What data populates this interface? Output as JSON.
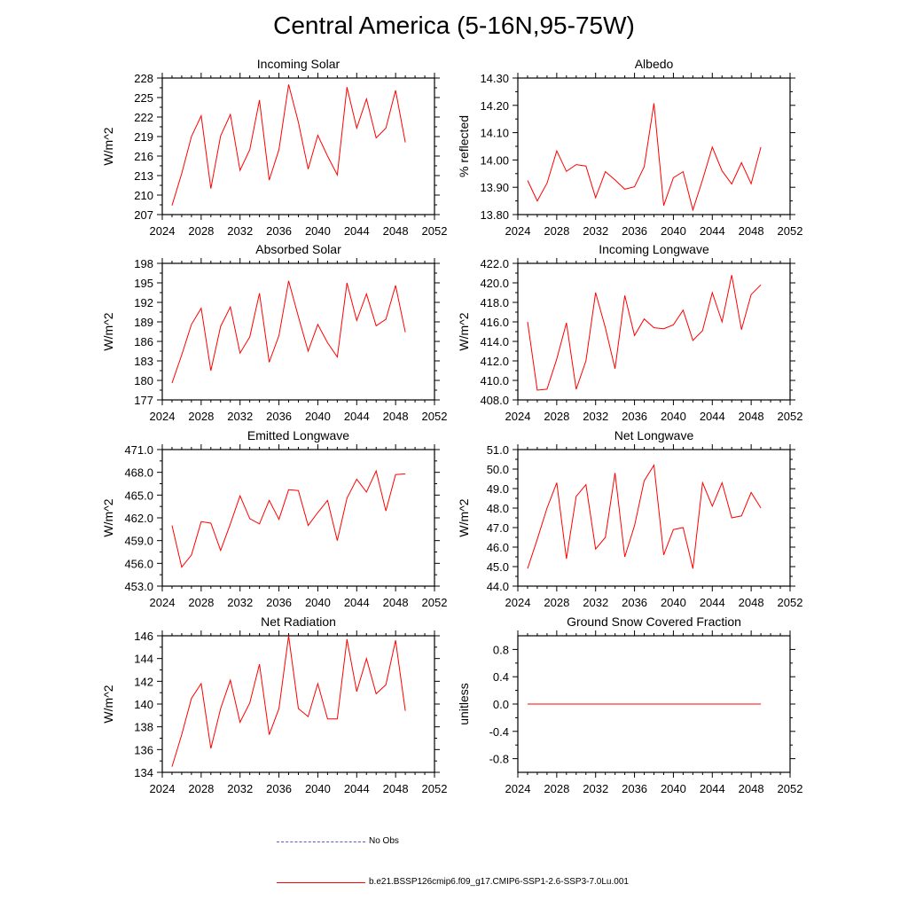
{
  "title": "Central America (5-16N,95-75W)",
  "legend": {
    "obs_label": "No Obs",
    "model_label": "b.e21.BSSP126cmip6.f09_g17.CMIP6-SSP1-2.6-SSP3-7.0Lu.001",
    "obs_color": "#5a5acf",
    "model_color": "#ff0000"
  },
  "chart_data": [
    {
      "type": "line",
      "title": "Incoming Solar",
      "ylabel": "W/m^2",
      "xlim": [
        2024,
        2052
      ],
      "xticks": [
        2024,
        2028,
        2032,
        2036,
        2040,
        2044,
        2048,
        2052
      ],
      "ylim": [
        207,
        228
      ],
      "yticks": [
        207,
        210,
        213,
        216,
        219,
        222,
        225,
        228
      ],
      "ytick_labels": [
        "207",
        "210",
        "213",
        "216",
        "219",
        "222",
        "225",
        "228"
      ],
      "x": [
        2025,
        2026,
        2027,
        2028,
        2029,
        2030,
        2031,
        2032,
        2033,
        2034,
        2035,
        2036,
        2037,
        2038,
        2039,
        2040,
        2041,
        2042,
        2043,
        2044,
        2045,
        2046,
        2047,
        2048,
        2049
      ],
      "series": [
        {
          "values": [
            208.4,
            213.3,
            219.0,
            222.2,
            211.0,
            219.1,
            222.4,
            213.8,
            217.0,
            224.6,
            212.3,
            217.0,
            227.0,
            221.2,
            214.0,
            219.2,
            216.0,
            213.1,
            226.6,
            220.3,
            224.8,
            218.8,
            220.3,
            226.1,
            218.1
          ]
        }
      ]
    },
    {
      "type": "line",
      "title": "Albedo",
      "ylabel": "% reflected",
      "xlim": [
        2024,
        2052
      ],
      "xticks": [
        2024,
        2028,
        2032,
        2036,
        2040,
        2044,
        2048,
        2052
      ],
      "ylim": [
        13.8,
        14.3
      ],
      "yticks": [
        13.8,
        13.9,
        14.0,
        14.1,
        14.2,
        14.3
      ],
      "ytick_labels": [
        "13.80",
        "13.90",
        "14.00",
        "14.10",
        "14.20",
        "14.30"
      ],
      "x": [
        2025,
        2026,
        2027,
        2028,
        2029,
        2030,
        2031,
        2032,
        2033,
        2034,
        2035,
        2036,
        2037,
        2038,
        2039,
        2040,
        2041,
        2042,
        2043,
        2044,
        2045,
        2046,
        2047,
        2048,
        2049
      ],
      "series": [
        {
          "values": [
            13.925,
            13.85,
            13.915,
            14.033,
            13.958,
            13.983,
            13.978,
            13.862,
            13.957,
            13.927,
            13.893,
            13.902,
            13.975,
            14.207,
            13.833,
            13.935,
            13.957,
            13.817,
            13.927,
            14.047,
            13.96,
            13.912,
            13.99,
            13.913,
            14.047
          ]
        }
      ]
    },
    {
      "type": "line",
      "title": "Absorbed Solar",
      "ylabel": "W/m^2",
      "xlim": [
        2024,
        2052
      ],
      "xticks": [
        2024,
        2028,
        2032,
        2036,
        2040,
        2044,
        2048,
        2052
      ],
      "ylim": [
        177,
        198
      ],
      "yticks": [
        177,
        180,
        183,
        186,
        189,
        192,
        195,
        198
      ],
      "ytick_labels": [
        "177",
        "180",
        "183",
        "186",
        "189",
        "192",
        "195",
        "198"
      ],
      "x": [
        2025,
        2026,
        2027,
        2028,
        2029,
        2030,
        2031,
        2032,
        2033,
        2034,
        2035,
        2036,
        2037,
        2038,
        2039,
        2040,
        2041,
        2042,
        2043,
        2044,
        2045,
        2046,
        2047,
        2048,
        2049
      ],
      "series": [
        {
          "values": [
            179.6,
            183.9,
            188.6,
            191.1,
            181.5,
            188.3,
            191.3,
            184.2,
            186.7,
            193.4,
            182.8,
            186.9,
            195.3,
            189.8,
            184.5,
            188.6,
            185.8,
            183.6,
            195.0,
            189.2,
            193.3,
            188.4,
            189.4,
            194.6,
            187.4
          ]
        }
      ]
    },
    {
      "type": "line",
      "title": "Incoming Longwave",
      "ylabel": "W/m^2",
      "xlim": [
        2024,
        2052
      ],
      "xticks": [
        2024,
        2028,
        2032,
        2036,
        2040,
        2044,
        2048,
        2052
      ],
      "ylim": [
        408,
        422
      ],
      "yticks": [
        408,
        410,
        412,
        414,
        416,
        418,
        420,
        422
      ],
      "ytick_labels": [
        "408.0",
        "410.0",
        "412.0",
        "414.0",
        "416.0",
        "418.0",
        "420.0",
        "422.0"
      ],
      "x": [
        2025,
        2026,
        2027,
        2028,
        2029,
        2030,
        2031,
        2032,
        2033,
        2034,
        2035,
        2036,
        2037,
        2038,
        2039,
        2040,
        2041,
        2042,
        2043,
        2044,
        2045,
        2046,
        2047,
        2048,
        2049
      ],
      "series": [
        {
          "values": [
            416.0,
            409.0,
            409.1,
            412.2,
            415.9,
            409.1,
            412.0,
            419.0,
            415.4,
            411.2,
            418.7,
            414.6,
            416.3,
            415.4,
            415.3,
            415.7,
            417.2,
            414.1,
            415.1,
            419.0,
            416.0,
            420.8,
            415.2,
            418.8,
            419.8
          ]
        }
      ]
    },
    {
      "type": "line",
      "title": "Emitted Longwave",
      "ylabel": "W/m^2",
      "xlim": [
        2024,
        2052
      ],
      "xticks": [
        2024,
        2028,
        2032,
        2036,
        2040,
        2044,
        2048,
        2052
      ],
      "ylim": [
        453,
        471
      ],
      "yticks": [
        453,
        456,
        459,
        462,
        465,
        468,
        471
      ],
      "ytick_labels": [
        "453.0",
        "456.0",
        "459.0",
        "462.0",
        "465.0",
        "468.0",
        "471.0"
      ],
      "x": [
        2025,
        2026,
        2027,
        2028,
        2029,
        2030,
        2031,
        2032,
        2033,
        2034,
        2035,
        2036,
        2037,
        2038,
        2039,
        2040,
        2041,
        2042,
        2043,
        2044,
        2045,
        2046,
        2047,
        2048,
        2049
      ],
      "series": [
        {
          "values": [
            461.0,
            455.5,
            457.1,
            461.5,
            461.3,
            457.7,
            461.2,
            464.9,
            461.9,
            461.2,
            464.3,
            461.8,
            465.7,
            465.6,
            461.0,
            462.7,
            464.3,
            459.0,
            464.6,
            467.1,
            465.4,
            468.2,
            462.9,
            467.7,
            467.8
          ]
        }
      ]
    },
    {
      "type": "line",
      "title": "Net Longwave",
      "ylabel": "W/m^2",
      "xlim": [
        2024,
        2052
      ],
      "xticks": [
        2024,
        2028,
        2032,
        2036,
        2040,
        2044,
        2048,
        2052
      ],
      "ylim": [
        44,
        51
      ],
      "yticks": [
        44,
        45,
        46,
        47,
        48,
        49,
        50,
        51
      ],
      "ytick_labels": [
        "44.0",
        "45.0",
        "46.0",
        "47.0",
        "48.0",
        "49.0",
        "50.0",
        "51.0"
      ],
      "x": [
        2025,
        2026,
        2027,
        2028,
        2029,
        2030,
        2031,
        2032,
        2033,
        2034,
        2035,
        2036,
        2037,
        2038,
        2039,
        2040,
        2041,
        2042,
        2043,
        2044,
        2045,
        2046,
        2047,
        2048,
        2049
      ],
      "series": [
        {
          "values": [
            44.9,
            46.4,
            48.0,
            49.3,
            45.4,
            48.6,
            49.2,
            45.9,
            46.5,
            49.8,
            45.5,
            47.1,
            49.4,
            50.2,
            45.6,
            46.9,
            47.0,
            44.9,
            49.3,
            48.1,
            49.3,
            47.5,
            47.6,
            48.8,
            48.0
          ]
        }
      ]
    },
    {
      "type": "line",
      "title": "Net Radiation",
      "ylabel": "W/m^2",
      "xlim": [
        2024,
        2052
      ],
      "xticks": [
        2024,
        2028,
        2032,
        2036,
        2040,
        2044,
        2048,
        2052
      ],
      "ylim": [
        134,
        146
      ],
      "yticks": [
        134,
        136,
        138,
        140,
        142,
        144,
        146
      ],
      "ytick_labels": [
        "134",
        "136",
        "138",
        "140",
        "142",
        "144",
        "146"
      ],
      "x": [
        2025,
        2026,
        2027,
        2028,
        2029,
        2030,
        2031,
        2032,
        2033,
        2034,
        2035,
        2036,
        2037,
        2038,
        2039,
        2040,
        2041,
        2042,
        2043,
        2044,
        2045,
        2046,
        2047,
        2048,
        2049
      ],
      "series": [
        {
          "values": [
            134.5,
            137.3,
            140.5,
            141.8,
            136.1,
            139.6,
            142.1,
            138.4,
            140.1,
            143.5,
            137.3,
            139.6,
            146.0,
            139.6,
            138.9,
            141.8,
            138.7,
            138.7,
            145.7,
            141.1,
            144.0,
            140.9,
            141.7,
            145.6,
            139.4
          ]
        }
      ]
    },
    {
      "type": "line",
      "title": "Ground Snow Covered Fraction",
      "ylabel": "unitless",
      "xlim": [
        2024,
        2052
      ],
      "xticks": [
        2024,
        2028,
        2032,
        2036,
        2040,
        2044,
        2048,
        2052
      ],
      "ylim": [
        -1.0,
        1.0
      ],
      "yticks": [
        -0.8,
        -0.4,
        0.0,
        0.4,
        0.8
      ],
      "ytick_labels": [
        "-0.8",
        "-0.4",
        "0.0",
        "0.4",
        "0.8"
      ],
      "x": [
        2025,
        2026,
        2027,
        2028,
        2029,
        2030,
        2031,
        2032,
        2033,
        2034,
        2035,
        2036,
        2037,
        2038,
        2039,
        2040,
        2041,
        2042,
        2043,
        2044,
        2045,
        2046,
        2047,
        2048,
        2049
      ],
      "series": [
        {
          "values": [
            0,
            0,
            0,
            0,
            0,
            0,
            0,
            0,
            0,
            0,
            0,
            0,
            0,
            0,
            0,
            0,
            0,
            0,
            0,
            0,
            0,
            0,
            0,
            0,
            0
          ]
        }
      ]
    }
  ]
}
